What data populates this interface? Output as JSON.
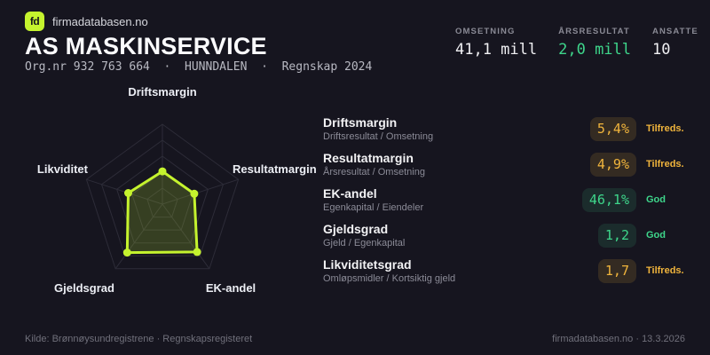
{
  "colors": {
    "background": "#16151f",
    "accent": "#c5f32e",
    "accent_fill": "rgba(197,243,46,0.19)",
    "grid": "#2d2c38",
    "amber": "#f0b43c",
    "green": "#3ed68b"
  },
  "header": {
    "logo_text": "fd",
    "brand": "firmadatabasen.no",
    "title": "AS MASKINSERVICE",
    "subtitle": "Org.nr 932 763 664  ·  HUNNDALEN  ·  Regnskap 2024"
  },
  "stats": [
    {
      "label": "OMSETNING",
      "value": "41,1 mill",
      "tone": "white"
    },
    {
      "label": "ÅRSRESULTAT",
      "value": "2,0 mill",
      "tone": "green"
    },
    {
      "label": "ANSATTE",
      "value": "10",
      "tone": "white"
    }
  ],
  "chart_data": {
    "type": "radar",
    "axes": [
      "Driftsmargin",
      "Resultatmargin",
      "EK-andel",
      "Gjeldsgrad",
      "Likviditet"
    ],
    "values_normalized": [
      0.41,
      0.42,
      0.74,
      0.75,
      0.45
    ],
    "max": 1,
    "rings": 5,
    "grid": "pentagon rings with spokes",
    "legend_position": "none",
    "title": ""
  },
  "metrics": [
    {
      "name": "Driftsmargin",
      "formula": "Driftsresultat / Omsetning",
      "value": "5,4%",
      "status": "Tilfreds.",
      "tone": "amber"
    },
    {
      "name": "Resultatmargin",
      "formula": "Årsresultat / Omsetning",
      "value": "4,9%",
      "status": "Tilfreds.",
      "tone": "amber"
    },
    {
      "name": "EK-andel",
      "formula": "Egenkapital / Eiendeler",
      "value": "46,1%",
      "status": "God",
      "tone": "green"
    },
    {
      "name": "Gjeldsgrad",
      "formula": "Gjeld / Egenkapital",
      "value": "1,2",
      "status": "God",
      "tone": "green"
    },
    {
      "name": "Likviditetsgrad",
      "formula": "Omløpsmidler / Kortsiktig gjeld",
      "value": "1,7",
      "status": "Tilfreds.",
      "tone": "amber"
    }
  ],
  "footer": {
    "source": "Kilde: Brønnøysundregistrene · Regnskapsregisteret",
    "site": "firmadatabasen.no · 13.3.2026"
  }
}
